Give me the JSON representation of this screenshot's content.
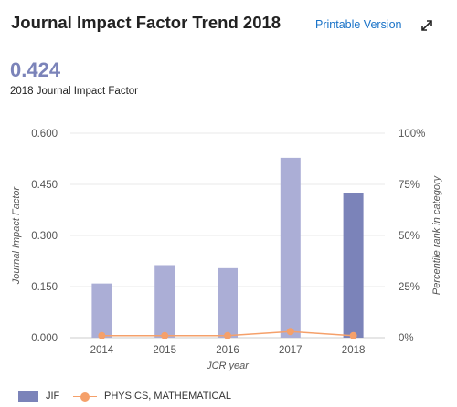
{
  "header": {
    "title": "Journal Impact Factor Trend 2018",
    "printable_label": "Printable Version",
    "expand_icon": "expand-arrows-icon"
  },
  "summary": {
    "value": "0.424",
    "caption": "2018 Journal Impact Factor"
  },
  "colors": {
    "bar": "#abaed6",
    "bar_current": "#7b83b9",
    "line": "#f5a06a",
    "jif_value": "#7b83b9",
    "link": "#1a73c8"
  },
  "chart_data": {
    "type": "bar",
    "categories": [
      "2014",
      "2015",
      "2016",
      "2017",
      "2018"
    ],
    "series": [
      {
        "name": "JIF",
        "type": "bar",
        "axis": "left",
        "values": [
          0.159,
          0.213,
          0.204,
          0.528,
          0.424
        ]
      },
      {
        "name": "PHYSICS, MATHEMATICAL",
        "type": "line",
        "axis": "right",
        "values": [
          1,
          1,
          1,
          3,
          1
        ]
      }
    ],
    "xlabel": "JCR year",
    "ylabel": "Journal Impact Factor",
    "y2label": "Percentile rank in category",
    "ylim": [
      0,
      0.6
    ],
    "y2lim": [
      0,
      100
    ],
    "yticks": [
      "0.000",
      "0.150",
      "0.300",
      "0.450",
      "0.600"
    ],
    "y2ticks": [
      "0%",
      "25%",
      "50%",
      "75%",
      "100%"
    ],
    "grid": true,
    "legend": "bottom-left"
  },
  "legend": {
    "items": [
      {
        "label": "JIF"
      },
      {
        "label": "PHYSICS, MATHEMATICAL"
      }
    ]
  }
}
